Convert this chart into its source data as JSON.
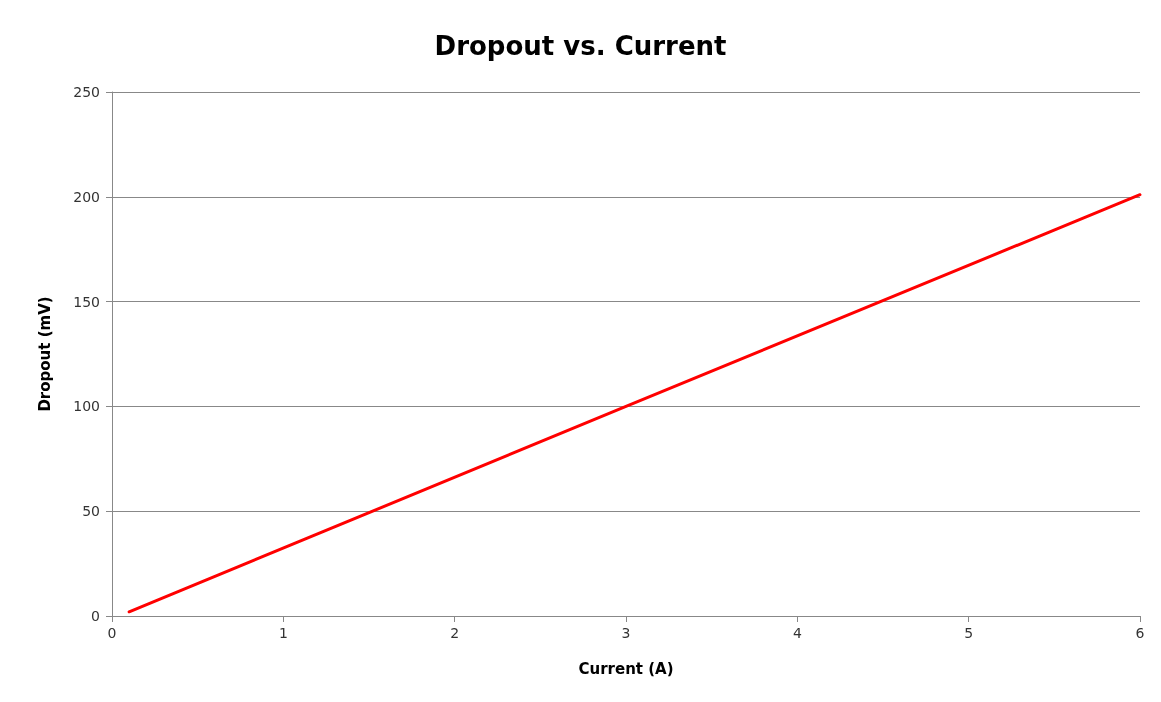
{
  "chart_data": {
    "type": "line",
    "title": "Dropout vs. Current",
    "xlabel": "Current (A)",
    "ylabel": "Dropout (mV)",
    "x": [
      0.1,
      3,
      6
    ],
    "series": [
      {
        "color": "#ff0000",
        "values": [
          2,
          100,
          201
        ]
      }
    ],
    "xlim": [
      0,
      6
    ],
    "xticks": [
      0,
      1,
      2,
      3,
      4,
      5,
      6
    ],
    "ylim": [
      0,
      250
    ],
    "yticks": [
      0,
      50,
      100,
      150,
      200,
      250
    ],
    "grid": "y",
    "marker": "none",
    "line_style": "solid"
  }
}
